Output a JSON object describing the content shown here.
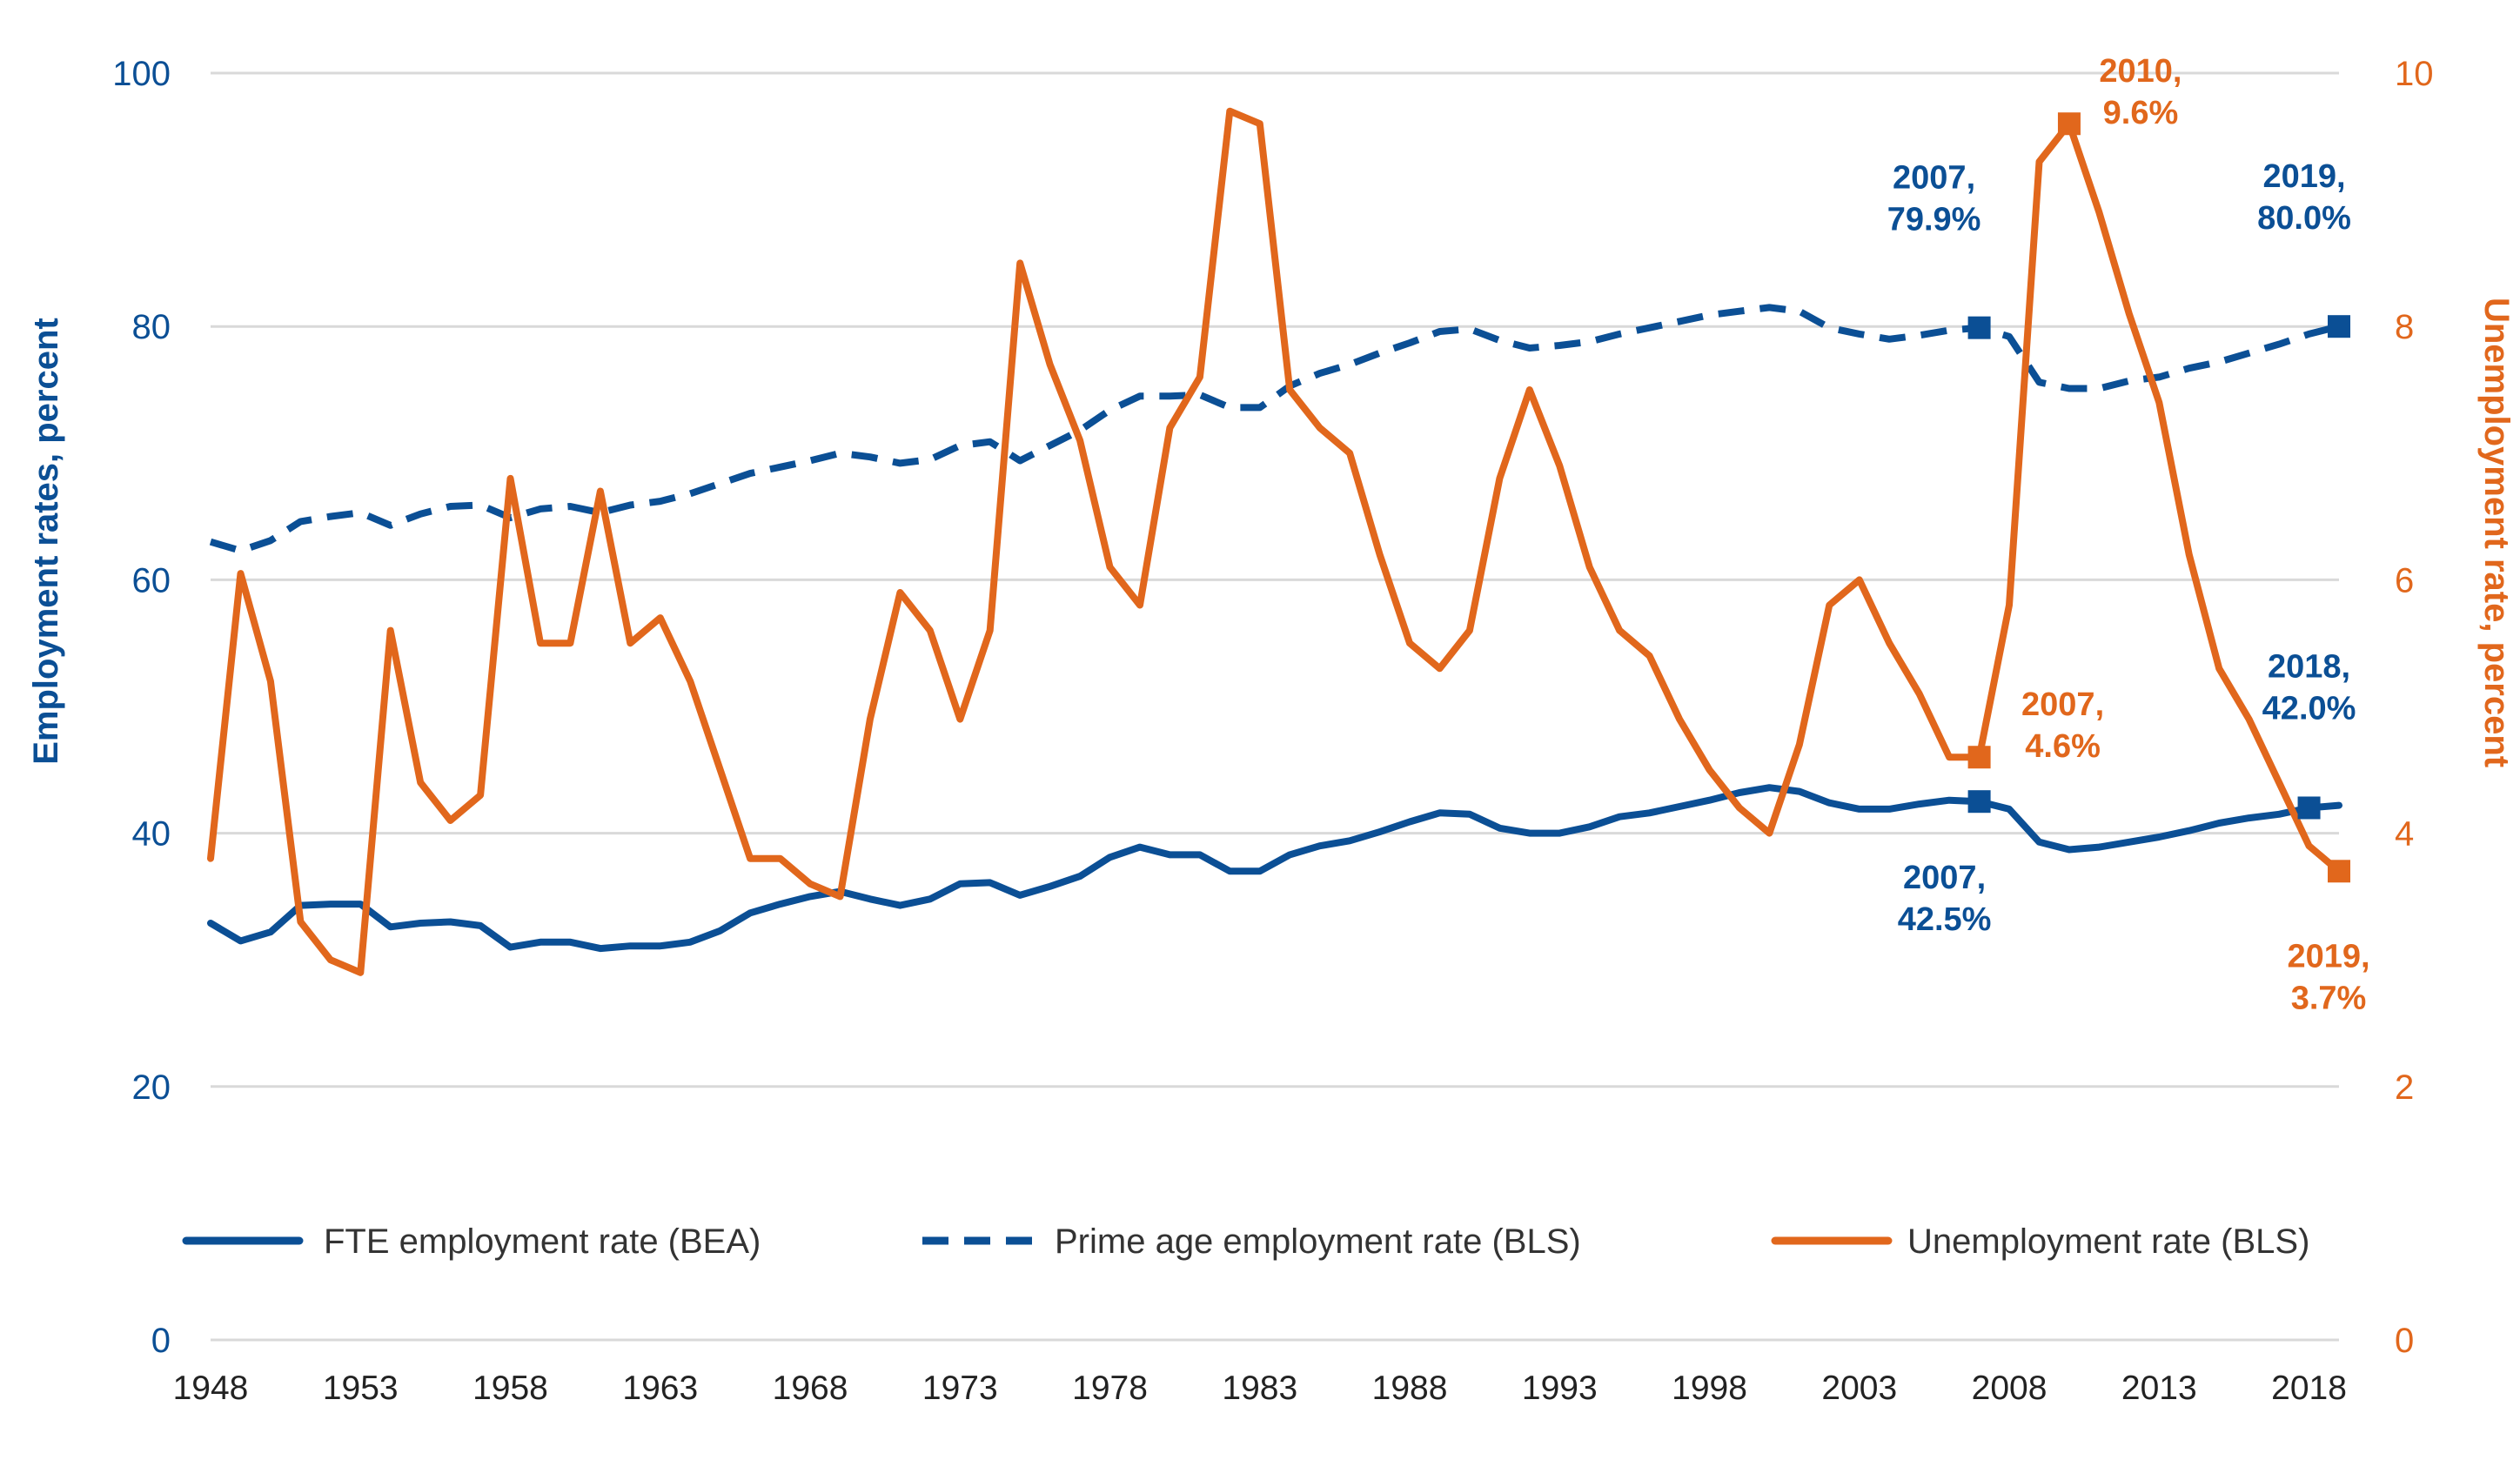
{
  "chart_data": {
    "type": "line",
    "title": "",
    "xlabel": "",
    "ylabel_left": "Employment rates, percent",
    "ylabel_right": "Unemployment rate, percent",
    "ylim_left": [
      0,
      100
    ],
    "ylim_right": [
      0,
      10
    ],
    "xlim": [
      1948,
      2019
    ],
    "yticks_left": [
      "0",
      "20",
      "40",
      "60",
      "80",
      "100"
    ],
    "yticks_right": [
      "0",
      "2",
      "4",
      "6",
      "8",
      "10"
    ],
    "xticks": [
      "1948",
      "1953",
      "1958",
      "1963",
      "1968",
      "1973",
      "1978",
      "1983",
      "1988",
      "1993",
      "1998",
      "2003",
      "2008",
      "2013",
      "2018"
    ],
    "grid": "horizontal",
    "legend_position": "bottom",
    "colors": {
      "blue": "#0b4f95",
      "orange": "#e1671c",
      "grid": "#d9d9d9"
    },
    "years": [
      1948,
      1949,
      1950,
      1951,
      1952,
      1953,
      1954,
      1955,
      1956,
      1957,
      1958,
      1959,
      1960,
      1961,
      1962,
      1963,
      1964,
      1965,
      1966,
      1967,
      1968,
      1969,
      1970,
      1971,
      1972,
      1973,
      1974,
      1975,
      1976,
      1977,
      1978,
      1979,
      1980,
      1981,
      1982,
      1983,
      1984,
      1985,
      1986,
      1987,
      1988,
      1989,
      1990,
      1991,
      1992,
      1993,
      1994,
      1995,
      1996,
      1997,
      1998,
      1999,
      2000,
      2001,
      2002,
      2003,
      2004,
      2005,
      2006,
      2007,
      2008,
      2009,
      2010,
      2011,
      2012,
      2013,
      2014,
      2015,
      2016,
      2017,
      2018,
      2019
    ],
    "series": [
      {
        "name": "FTE employment rate (BEA)",
        "axis": "left",
        "style": "solid",
        "color": "#0b4f95",
        "values": [
          32.9,
          31.5,
          32.2,
          34.3,
          34.4,
          34.4,
          32.6,
          32.9,
          33.0,
          32.7,
          31.0,
          31.4,
          31.4,
          30.9,
          31.1,
          31.1,
          31.4,
          32.3,
          33.7,
          34.4,
          35.0,
          35.4,
          34.8,
          34.3,
          34.8,
          36.0,
          36.1,
          35.1,
          35.8,
          36.6,
          38.1,
          38.9,
          38.3,
          38.3,
          37.0,
          37.0,
          38.3,
          39.0,
          39.4,
          40.1,
          40.9,
          41.6,
          41.5,
          40.4,
          40.0,
          40.0,
          40.5,
          41.3,
          41.6,
          42.1,
          42.6,
          43.2,
          43.6,
          43.3,
          42.4,
          41.9,
          41.9,
          42.3,
          42.6,
          42.5,
          41.9,
          39.3,
          38.7,
          38.9,
          39.3,
          39.7,
          40.2,
          40.8,
          41.2,
          41.5,
          42.0,
          42.2
        ]
      },
      {
        "name": "Prime age employment rate (BLS)",
        "axis": "left",
        "style": "dashed",
        "color": "#0b4f95",
        "values": [
          63.0,
          62.3,
          63.1,
          64.6,
          65.0,
          65.3,
          64.3,
          65.2,
          65.8,
          65.9,
          64.9,
          65.6,
          65.8,
          65.3,
          65.9,
          66.2,
          66.8,
          67.6,
          68.4,
          68.9,
          69.4,
          70.0,
          69.7,
          69.2,
          69.5,
          70.6,
          70.9,
          69.4,
          70.6,
          71.8,
          73.4,
          74.5,
          74.5,
          74.6,
          73.6,
          73.6,
          75.3,
          76.3,
          77.0,
          77.9,
          78.7,
          79.6,
          79.8,
          78.9,
          78.3,
          78.5,
          78.8,
          79.4,
          79.9,
          80.4,
          80.9,
          81.2,
          81.5,
          81.2,
          79.9,
          79.4,
          79.0,
          79.3,
          79.7,
          79.9,
          79.2,
          75.6,
          75.1,
          75.1,
          75.7,
          76.0,
          76.7,
          77.2,
          77.9,
          78.6,
          79.4,
          80.0
        ]
      },
      {
        "name": "Unemployment rate (BLS)",
        "axis": "right",
        "style": "solid",
        "color": "#e1671c",
        "values": [
          3.8,
          6.05,
          5.2,
          3.3,
          3.0,
          2.9,
          5.6,
          4.4,
          4.1,
          4.3,
          6.8,
          5.5,
          5.5,
          6.7,
          5.5,
          5.7,
          5.2,
          4.5,
          3.8,
          3.8,
          3.6,
          3.5,
          4.9,
          5.9,
          5.6,
          4.9,
          5.6,
          8.5,
          7.7,
          7.1,
          6.1,
          5.8,
          7.2,
          7.6,
          9.7,
          9.6,
          7.5,
          7.2,
          7.0,
          6.2,
          5.5,
          5.3,
          5.6,
          6.8,
          7.5,
          6.9,
          6.1,
          5.6,
          5.4,
          4.9,
          4.5,
          4.2,
          4.0,
          4.7,
          5.8,
          6.0,
          5.5,
          5.1,
          4.6,
          4.6,
          5.8,
          9.3,
          9.6,
          8.9,
          8.1,
          7.4,
          6.2,
          5.3,
          4.9,
          4.4,
          3.9,
          3.7
        ]
      }
    ],
    "annotations": [
      {
        "id": "fte-2007",
        "line1": "2007,",
        "line2": "42.5%",
        "color": "#0b4f95",
        "year": 2007,
        "value": 42.5,
        "axis": "left"
      },
      {
        "id": "fte-2018",
        "line1": "2018,",
        "line2": "42.0%",
        "color": "#0b4f95",
        "year": 2018,
        "value": 42.0,
        "axis": "left"
      },
      {
        "id": "prime-2007",
        "line1": "2007,",
        "line2": "79.9%",
        "color": "#0b4f95",
        "year": 2007,
        "value": 79.9,
        "axis": "left"
      },
      {
        "id": "prime-2019",
        "line1": "2019,",
        "line2": "80.0%",
        "color": "#0b4f95",
        "year": 2019,
        "value": 80.0,
        "axis": "left"
      },
      {
        "id": "unemp-2007",
        "line1": "2007,",
        "line2": "4.6%",
        "color": "#e1671c",
        "year": 2007,
        "value": 4.6,
        "axis": "right"
      },
      {
        "id": "unemp-2010",
        "line1": "2010,",
        "line2": "9.6%",
        "color": "#e1671c",
        "year": 2010,
        "value": 9.6,
        "axis": "right"
      },
      {
        "id": "unemp-2019",
        "line1": "2019,",
        "line2": "3.7%",
        "color": "#e1671c",
        "year": 2019,
        "value": 3.7,
        "axis": "right"
      }
    ]
  }
}
